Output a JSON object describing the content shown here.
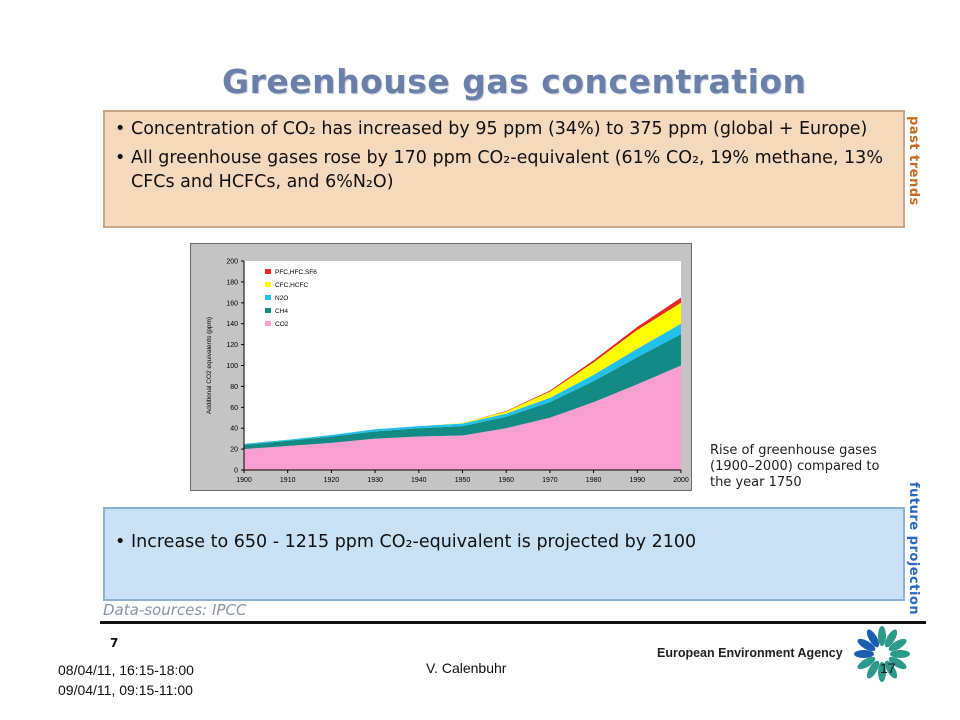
{
  "slide": {
    "title": "Greenhouse gas concentration",
    "past_box": {
      "label": "past trends",
      "bullets": [
        "Concentration of CO₂ has increased by 95 ppm (34%) to 375 ppm (global + Europe)",
        "All greenhouse gases rose by 170 ppm CO₂-equivalent (61% CO₂, 19% methane, 13% CFCs and HCFCs, and 6%N₂O)"
      ]
    },
    "future_box": {
      "label": "future projection",
      "bullets": [
        "Increase to 650 - 1215 ppm CO₂-equivalent is projected by 2100"
      ]
    },
    "caption": [
      "Rise of greenhouse gases",
      "(1900–2000) compared to",
      "the year 1750"
    ],
    "source": "Data-sources: IPCC",
    "small_number": "7",
    "footer": {
      "dates": [
        "08/04/11, 16:15-18:00",
        "09/04/11, 09:15-11:00"
      ],
      "author": "V. Calenbuhr",
      "page": "17",
      "agency": "European Environment Agency"
    },
    "colors": {
      "title": "#6b7fa8",
      "past_bg": "#f5d9bc",
      "past_label": "#c8691f",
      "future_bg": "#c9e1f4",
      "future_label": "#2a67c4"
    },
    "icons": [
      "eea-logo-icon"
    ]
  },
  "chart_data": {
    "type": "area",
    "stacked": true,
    "ylabel": "Additional CO2 equivalents (ppm)",
    "xlabel": "",
    "xlim": [
      1900,
      2000
    ],
    "ylim": [
      0,
      200
    ],
    "x_ticks": [
      1900,
      1910,
      1920,
      1930,
      1940,
      1950,
      1960,
      1970,
      1980,
      1990,
      2000
    ],
    "y_ticks": [
      0,
      20,
      40,
      60,
      80,
      100,
      120,
      140,
      160,
      180,
      200
    ],
    "legend_position": "top-left",
    "x": [
      1900,
      1910,
      1920,
      1930,
      1940,
      1950,
      1960,
      1970,
      1980,
      1990,
      2000
    ],
    "series": [
      {
        "name": "CO2",
        "color": "#f99fcf",
        "values": [
          20,
          23,
          26,
          30,
          32,
          33,
          40,
          50,
          65,
          82,
          100
        ]
      },
      {
        "name": "CH4",
        "color": "#138a83",
        "values": [
          4,
          5,
          6,
          7,
          8,
          9,
          11,
          15,
          20,
          26,
          30
        ]
      },
      {
        "name": "N2O",
        "color": "#22c0ee",
        "values": [
          1,
          1,
          1.5,
          2,
          2,
          2.5,
          3,
          4,
          6,
          8,
          10
        ]
      },
      {
        "name": "CFC,HCFC",
        "color": "#ffff00",
        "values": [
          0,
          0,
          0,
          0,
          0,
          0.5,
          2,
          6,
          12,
          18,
          20
        ]
      },
      {
        "name": "PFC,HFC,SF6",
        "color": "#e6281e",
        "values": [
          0,
          0,
          0,
          0,
          0,
          0,
          0.5,
          1,
          2,
          3,
          5
        ]
      }
    ]
  }
}
